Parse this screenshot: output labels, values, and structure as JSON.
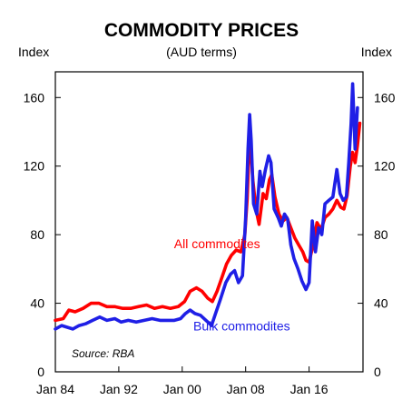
{
  "chart_data": {
    "type": "line",
    "title": "COMMODITY PRICES",
    "subtitle": "(AUD terms)",
    "ylabel_left": "Index",
    "ylabel_right": "Index",
    "source": "Source: RBA",
    "ylim": [
      0,
      175
    ],
    "yticks": [
      0,
      40,
      80,
      120,
      160
    ],
    "xlim": [
      1984.0,
      2022.8
    ],
    "xticks": [
      {
        "label": "Jan 84",
        "x": 1984.0
      },
      {
        "label": "Jan 92",
        "x": 1992.0
      },
      {
        "label": "Jan 00",
        "x": 2000.0
      },
      {
        "label": "Jan 08",
        "x": 2008.0
      },
      {
        "label": "Jan 16",
        "x": 2016.0
      }
    ],
    "grid": false,
    "series": [
      {
        "name": "All commodites",
        "color": "#ff0000",
        "points": [
          [
            1984.0,
            30
          ],
          [
            1985.0,
            31
          ],
          [
            1985.7,
            36
          ],
          [
            1986.5,
            35
          ],
          [
            1987.5,
            37
          ],
          [
            1988.5,
            40
          ],
          [
            1989.5,
            40
          ],
          [
            1990.5,
            38
          ],
          [
            1991.5,
            38
          ],
          [
            1992.5,
            37
          ],
          [
            1993.5,
            37
          ],
          [
            1994.5,
            38
          ],
          [
            1995.5,
            39
          ],
          [
            1996.5,
            37
          ],
          [
            1997.5,
            38
          ],
          [
            1998.5,
            37
          ],
          [
            1999.5,
            38
          ],
          [
            2000.3,
            41
          ],
          [
            2001.0,
            47
          ],
          [
            2001.8,
            49
          ],
          [
            2002.5,
            47
          ],
          [
            2003.2,
            43
          ],
          [
            2003.8,
            41
          ],
          [
            2004.4,
            47
          ],
          [
            2005.0,
            55
          ],
          [
            2005.6,
            63
          ],
          [
            2006.2,
            68
          ],
          [
            2006.8,
            71
          ],
          [
            2007.4,
            70
          ],
          [
            2007.9,
            80
          ],
          [
            2008.2,
            101
          ],
          [
            2008.45,
            132
          ],
          [
            2008.6,
            136
          ],
          [
            2008.9,
            112
          ],
          [
            2009.3,
            95
          ],
          [
            2009.7,
            86
          ],
          [
            2010.2,
            104
          ],
          [
            2010.6,
            101
          ],
          [
            2011.0,
            112
          ],
          [
            2011.3,
            115
          ],
          [
            2011.7,
            102
          ],
          [
            2012.2,
            92
          ],
          [
            2012.7,
            88
          ],
          [
            2013.2,
            90
          ],
          [
            2013.7,
            84
          ],
          [
            2014.2,
            78
          ],
          [
            2014.7,
            74
          ],
          [
            2015.2,
            70
          ],
          [
            2015.6,
            65
          ],
          [
            2016.0,
            64
          ],
          [
            2016.5,
            74
          ],
          [
            2017.0,
            87
          ],
          [
            2017.5,
            83
          ],
          [
            2018.0,
            90
          ],
          [
            2018.5,
            92
          ],
          [
            2019.0,
            95
          ],
          [
            2019.5,
            100
          ],
          [
            2020.0,
            96
          ],
          [
            2020.4,
            95
          ],
          [
            2020.8,
            103
          ],
          [
            2021.2,
            120
          ],
          [
            2021.5,
            128
          ],
          [
            2021.8,
            122
          ],
          [
            2022.1,
            132
          ],
          [
            2022.4,
            145
          ]
        ]
      },
      {
        "name": "Bulk commodites",
        "color": "#1f1fe6",
        "points": [
          [
            1984.0,
            25
          ],
          [
            1984.8,
            27
          ],
          [
            1985.5,
            26
          ],
          [
            1986.2,
            25
          ],
          [
            1987.0,
            27
          ],
          [
            1987.8,
            28
          ],
          [
            1988.7,
            30
          ],
          [
            1989.6,
            32
          ],
          [
            1990.5,
            30
          ],
          [
            1991.5,
            31
          ],
          [
            1992.3,
            29
          ],
          [
            1993.2,
            30
          ],
          [
            1994.2,
            29
          ],
          [
            1995.2,
            30
          ],
          [
            1996.2,
            31
          ],
          [
            1997.2,
            30
          ],
          [
            1998.2,
            30
          ],
          [
            1999.0,
            30
          ],
          [
            1999.8,
            31
          ],
          [
            2000.4,
            34
          ],
          [
            2001.0,
            36
          ],
          [
            2001.6,
            34
          ],
          [
            2002.3,
            33
          ],
          [
            2003.0,
            30
          ],
          [
            2003.7,
            27
          ],
          [
            2004.2,
            34
          ],
          [
            2004.8,
            42
          ],
          [
            2005.5,
            52
          ],
          [
            2006.1,
            57
          ],
          [
            2006.6,
            59
          ],
          [
            2007.1,
            52
          ],
          [
            2007.6,
            56
          ],
          [
            2008.0,
            90
          ],
          [
            2008.3,
            130
          ],
          [
            2008.5,
            150
          ],
          [
            2008.7,
            135
          ],
          [
            2009.0,
            98
          ],
          [
            2009.4,
            92
          ],
          [
            2009.8,
            117
          ],
          [
            2010.1,
            108
          ],
          [
            2010.5,
            118
          ],
          [
            2010.9,
            126
          ],
          [
            2011.2,
            122
          ],
          [
            2011.6,
            95
          ],
          [
            2012.1,
            90
          ],
          [
            2012.5,
            85
          ],
          [
            2012.9,
            92
          ],
          [
            2013.3,
            89
          ],
          [
            2013.7,
            74
          ],
          [
            2014.1,
            66
          ],
          [
            2014.6,
            60
          ],
          [
            2015.1,
            53
          ],
          [
            2015.6,
            48
          ],
          [
            2016.0,
            52
          ],
          [
            2016.4,
            88
          ],
          [
            2016.8,
            70
          ],
          [
            2017.2,
            84
          ],
          [
            2017.6,
            80
          ],
          [
            2018.0,
            98
          ],
          [
            2018.5,
            100
          ],
          [
            2019.0,
            102
          ],
          [
            2019.5,
            118
          ],
          [
            2019.9,
            104
          ],
          [
            2020.3,
            100
          ],
          [
            2020.7,
            102
          ],
          [
            2021.0,
            122
          ],
          [
            2021.3,
            145
          ],
          [
            2021.5,
            168
          ],
          [
            2021.8,
            130
          ],
          [
            2022.1,
            154
          ]
        ]
      }
    ],
    "annotations": [
      {
        "text": "All commodites",
        "series": "All commodites",
        "x": 2004.4,
        "y": 72
      },
      {
        "text": "Bulk commodites",
        "series": "Bulk commodites",
        "x": 2007.5,
        "y": 24
      }
    ]
  }
}
